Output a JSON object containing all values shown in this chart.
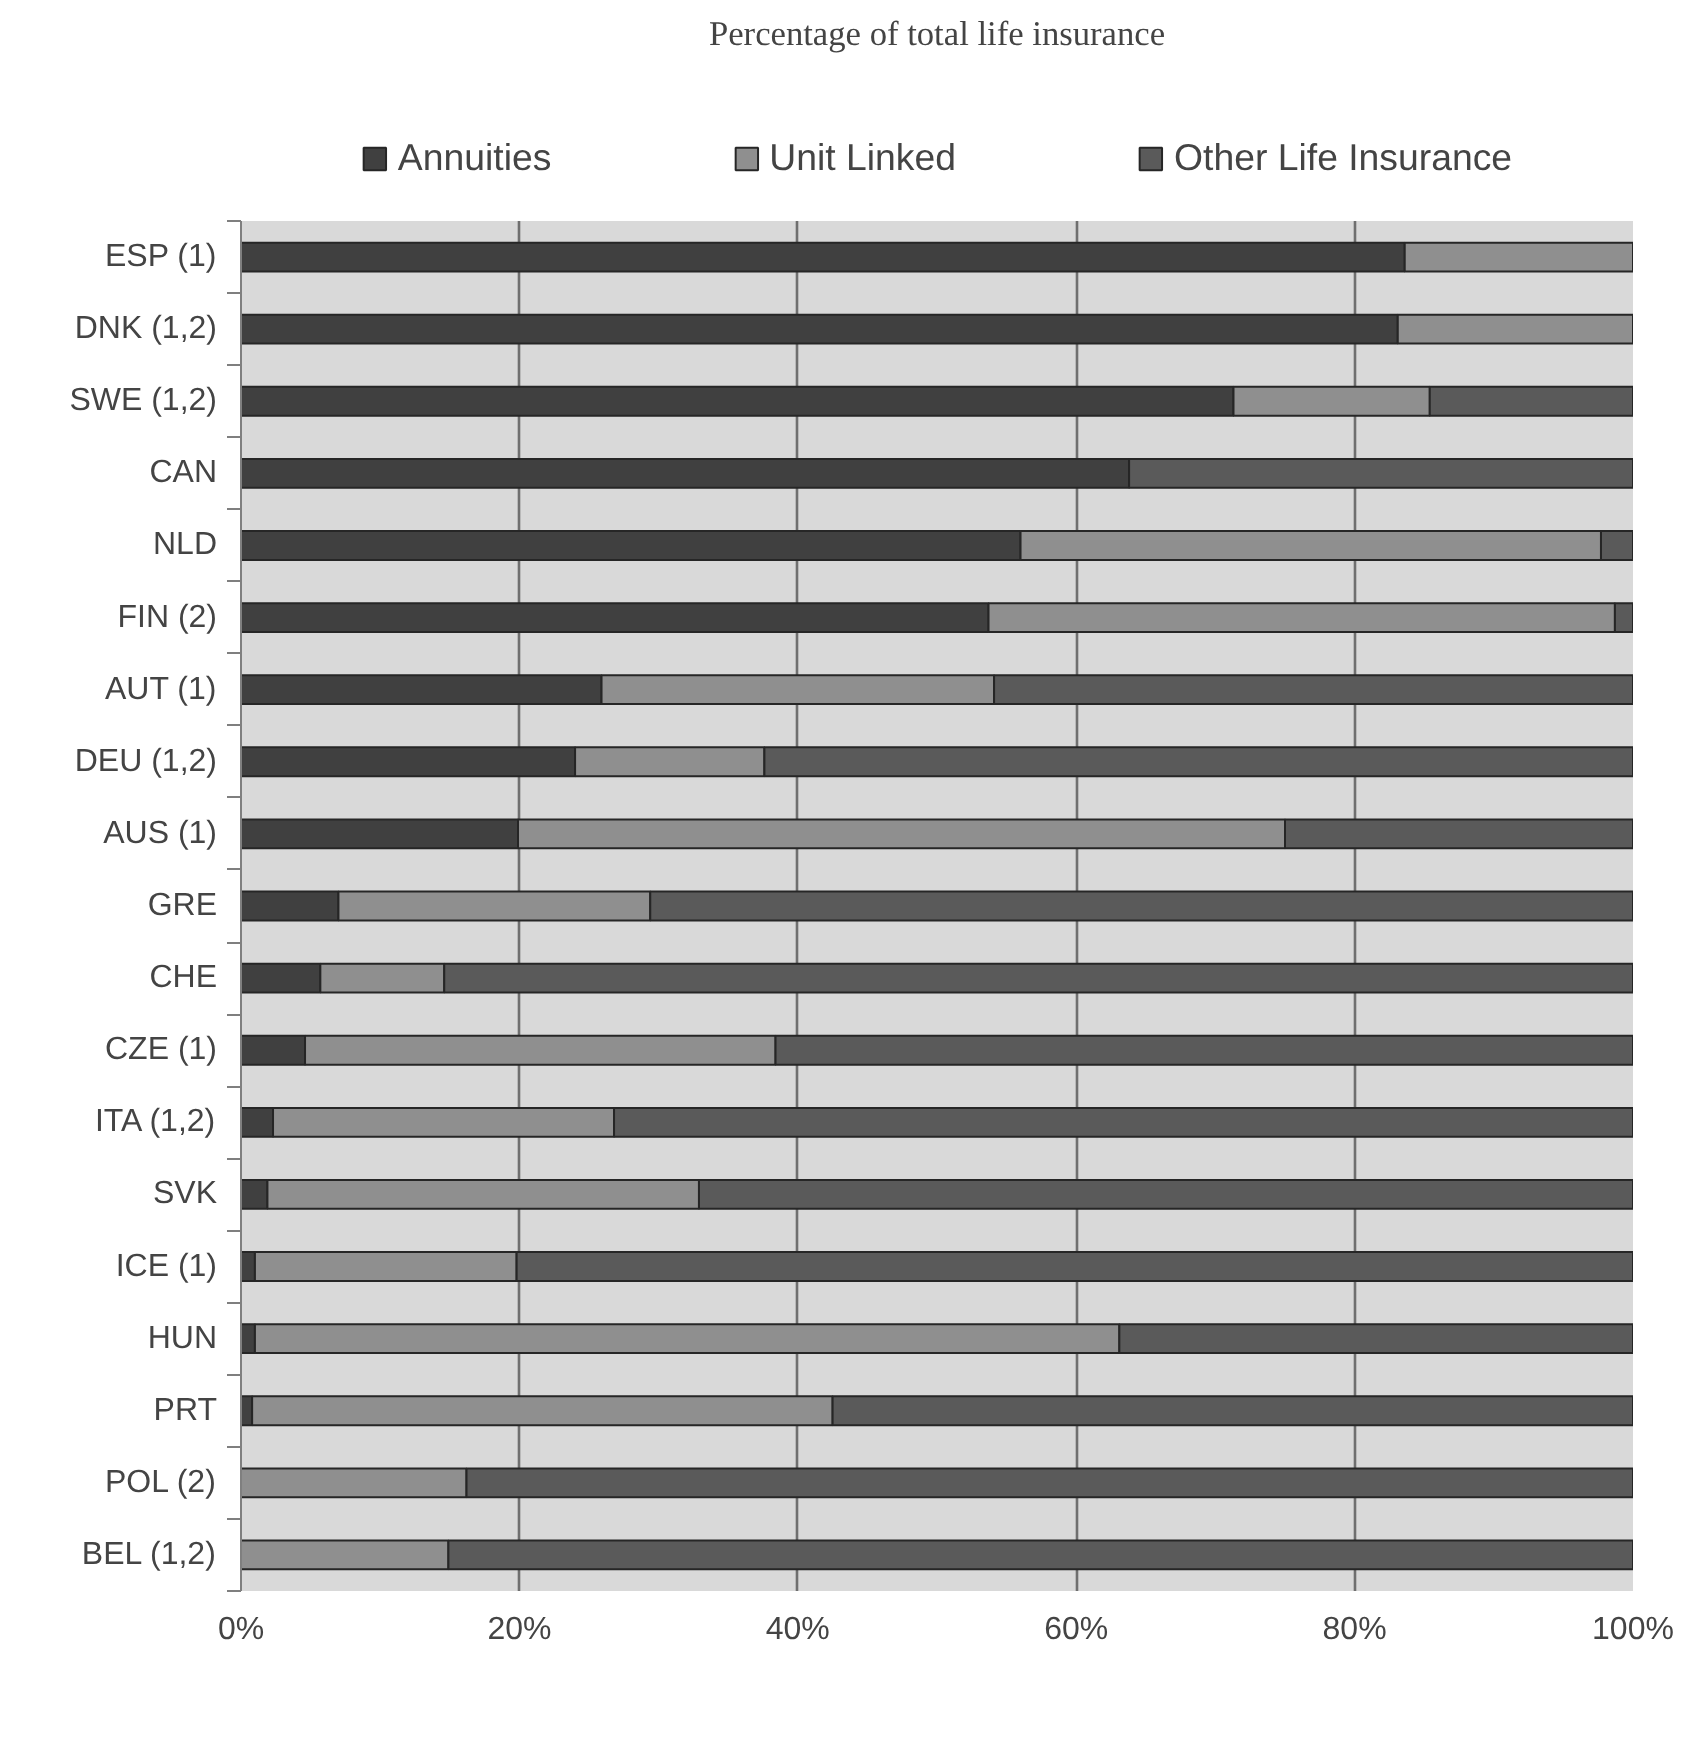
{
  "chart_data": {
    "type": "bar",
    "orientation": "horizontal",
    "stacked": true,
    "title": "Percentage of total life insurance",
    "categories": [
      "ESP (1)",
      "DNK (1,2)",
      "SWE (1,2)",
      "CAN",
      "NLD",
      "FIN (2)",
      "AUT (1)",
      "DEU (1,2)",
      "AUS (1)",
      "GRE",
      "CHE",
      "CZE (1)",
      "ITA (1,2)",
      "SVK",
      "ICE (1)",
      "HUN",
      "PRT",
      "POL (2)",
      "BEL (1,2)"
    ],
    "series": [
      {
        "name": "Annuities",
        "color": "#404040",
        "values": [
          83.6,
          83.1,
          71.3,
          63.8,
          56.0,
          53.7,
          25.9,
          24.0,
          19.9,
          7.0,
          5.7,
          4.6,
          2.3,
          1.9,
          1.0,
          1.0,
          0.8,
          0,
          0
        ]
      },
      {
        "name": "Unit Linked",
        "color": "#8f8f8f",
        "values": [
          16.4,
          16.9,
          14.1,
          0,
          41.7,
          45.0,
          28.2,
          13.6,
          55.1,
          22.4,
          8.9,
          33.8,
          24.5,
          31.0,
          18.8,
          62.1,
          41.7,
          16.2,
          14.9
        ]
      },
      {
        "name": "Other Life Insurance",
        "color": "#5a5a5a",
        "values": [
          0,
          0,
          14.6,
          36.2,
          2.3,
          1.3,
          45.9,
          62.4,
          25.0,
          70.6,
          85.4,
          61.6,
          73.2,
          67.1,
          80.2,
          36.9,
          57.5,
          83.8,
          85.1
        ]
      }
    ],
    "xlim": [
      0,
      100
    ],
    "xticks": [
      {
        "value": 0,
        "label": "0%"
      },
      {
        "value": 20,
        "label": "20%"
      },
      {
        "value": 40,
        "label": "40%"
      },
      {
        "value": 60,
        "label": "60%"
      },
      {
        "value": 80,
        "label": "80%"
      },
      {
        "value": 100,
        "label": "100%"
      }
    ],
    "grid": "x",
    "legend": "top"
  }
}
